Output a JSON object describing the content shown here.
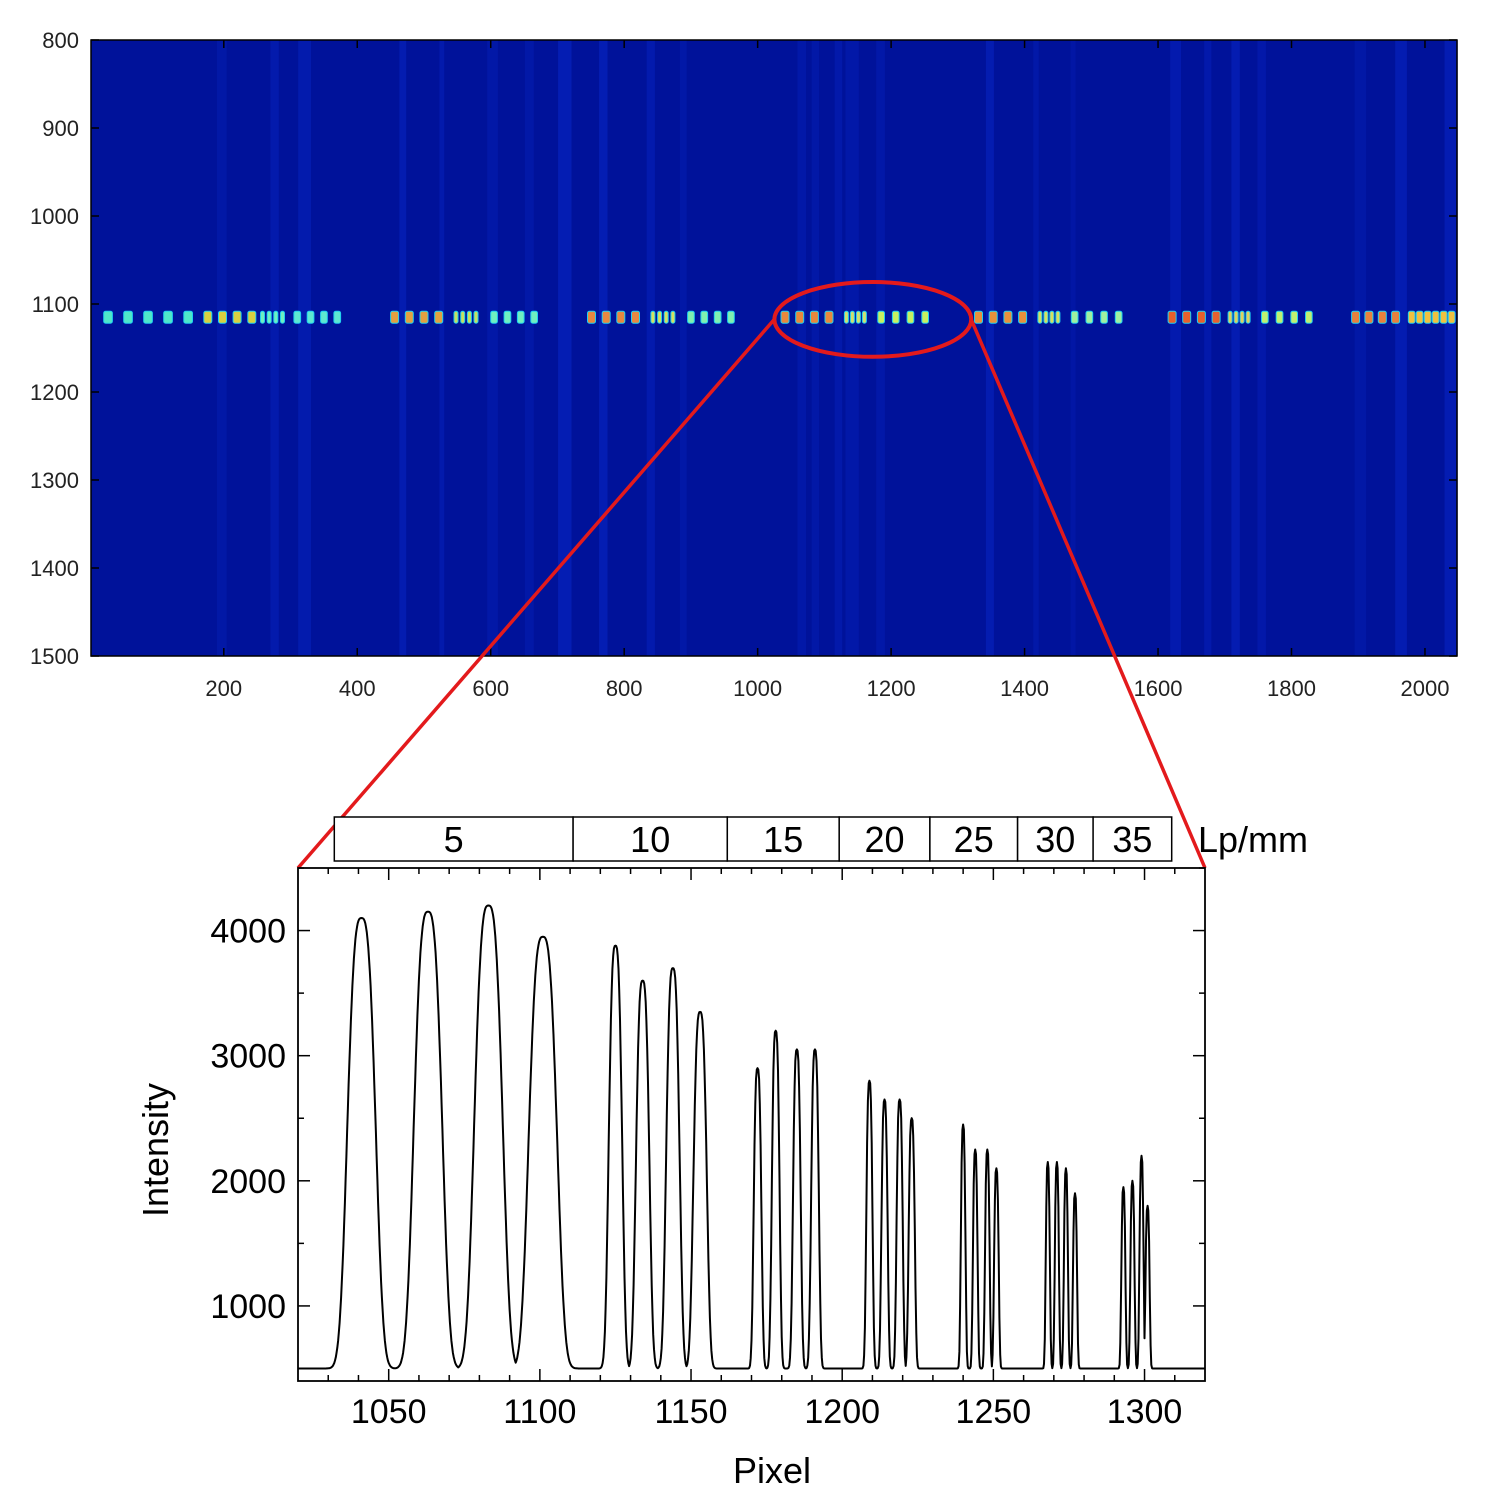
{
  "chart_data": [
    {
      "type": "heatmap",
      "title": "",
      "xlabel": "",
      "ylabel": "",
      "xlim": [
        1,
        2048
      ],
      "ylim": [
        1500,
        800
      ],
      "xticks": [
        200,
        400,
        600,
        800,
        1000,
        1200,
        1400,
        1600,
        1800,
        2000
      ],
      "yticks": [
        800,
        900,
        1000,
        1100,
        1200,
        1300,
        1400,
        1500
      ],
      "stripe_row": 1115,
      "colormap": [
        "#00008f",
        "#0000ff",
        "#00ffff",
        "#ffff00",
        "#ff0000"
      ],
      "background_color": "#00129a",
      "annotation": {
        "shape": "ellipse",
        "x_range": [
          1025,
          1320
        ],
        "y_range": [
          1075,
          1160
        ],
        "color": "#e31a1c"
      }
    },
    {
      "type": "line",
      "title": "",
      "xlabel": "Pixel",
      "ylabel": "Intensity",
      "xlim": [
        1020,
        1320
      ],
      "ylim": [
        400,
        4500
      ],
      "xticks": [
        1050,
        1100,
        1150,
        1200,
        1250,
        1300
      ],
      "yticks": [
        1000,
        2000,
        3000,
        4000
      ],
      "grid": false,
      "line_color": "#000000",
      "baseline": 500,
      "peaks": [
        {
          "x": 1041,
          "y": 4100,
          "w": 5.5
        },
        {
          "x": 1063,
          "y": 4150,
          "w": 5.5
        },
        {
          "x": 1083,
          "y": 4200,
          "w": 5.5
        },
        {
          "x": 1101,
          "y": 3950,
          "w": 5.5
        },
        {
          "x": 1125,
          "y": 3880,
          "w": 2.6
        },
        {
          "x": 1134,
          "y": 3600,
          "w": 2.6
        },
        {
          "x": 1144,
          "y": 3700,
          "w": 2.6
        },
        {
          "x": 1153,
          "y": 3350,
          "w": 2.6
        },
        {
          "x": 1172,
          "y": 2900,
          "w": 1.5
        },
        {
          "x": 1178,
          "y": 3200,
          "w": 1.5
        },
        {
          "x": 1185,
          "y": 3050,
          "w": 1.5
        },
        {
          "x": 1191,
          "y": 3050,
          "w": 1.5
        },
        {
          "x": 1209,
          "y": 2800,
          "w": 1.2
        },
        {
          "x": 1214,
          "y": 2650,
          "w": 1.2
        },
        {
          "x": 1219,
          "y": 2650,
          "w": 1.2
        },
        {
          "x": 1223,
          "y": 2500,
          "w": 1.2
        },
        {
          "x": 1240,
          "y": 2450,
          "w": 0.9
        },
        {
          "x": 1244,
          "y": 2250,
          "w": 0.9
        },
        {
          "x": 1248,
          "y": 2250,
          "w": 0.9
        },
        {
          "x": 1251,
          "y": 2100,
          "w": 0.9
        },
        {
          "x": 1268,
          "y": 2150,
          "w": 0.8
        },
        {
          "x": 1271,
          "y": 2150,
          "w": 0.8
        },
        {
          "x": 1274,
          "y": 2100,
          "w": 0.8
        },
        {
          "x": 1277,
          "y": 1900,
          "w": 0.8
        },
        {
          "x": 1293,
          "y": 1950,
          "w": 0.8
        },
        {
          "x": 1296,
          "y": 2000,
          "w": 0.8
        },
        {
          "x": 1299,
          "y": 2200,
          "w": 0.8
        },
        {
          "x": 1301,
          "y": 1800,
          "w": 0.8
        }
      ],
      "band_label": "Lp/mm",
      "bands": [
        {
          "label": "5",
          "x_start": 1032,
          "x_end": 1111
        },
        {
          "label": "10",
          "x_start": 1111,
          "x_end": 1162
        },
        {
          "label": "15",
          "x_start": 1162,
          "x_end": 1199
        },
        {
          "label": "20",
          "x_start": 1199,
          "x_end": 1229
        },
        {
          "label": "25",
          "x_start": 1229,
          "x_end": 1258
        },
        {
          "label": "30",
          "x_start": 1258,
          "x_end": 1283
        },
        {
          "label": "35",
          "x_start": 1283,
          "x_end": 1309
        }
      ]
    }
  ],
  "connector_color": "#e31a1c"
}
